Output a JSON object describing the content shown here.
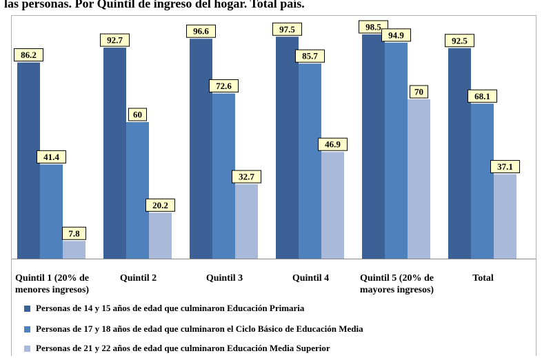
{
  "title": "las personas. Por Quintil de ingreso del hogar. Total país.",
  "colors": {
    "primaria": "#3b6196",
    "ciclo_basico": "#4f81bd",
    "media_superior": "#a9b9d9",
    "label_bg": "#ffffcc"
  },
  "chart_data": {
    "type": "bar",
    "categories": [
      "Quintil 1 (20% de\nmenores ingresos)",
      "Quintil 2",
      "Quintil 3",
      "Quintil 4",
      "Quintil 5 (20% de\nmayores ingresos)",
      "Total"
    ],
    "series": [
      {
        "name": "Personas de 14 y 15 años de edad que culminaron Educación Primaria",
        "values": [
          86.2,
          92.7,
          96.6,
          97.5,
          98.5,
          92.5
        ]
      },
      {
        "name": "Personas de 17 y 18 años de edad que culminaron el Ciclo Básico de Educación Media",
        "values": [
          41.4,
          60,
          72.6,
          85.7,
          94.9,
          68.1
        ]
      },
      {
        "name": "Personas de 21 y 22 años de edad que culminaron Educación Media Superior",
        "values": [
          7.8,
          20.2,
          32.7,
          46.9,
          70,
          37.1
        ]
      }
    ],
    "ylim": [
      0,
      100
    ],
    "grid": false,
    "legend_position": "bottom"
  }
}
